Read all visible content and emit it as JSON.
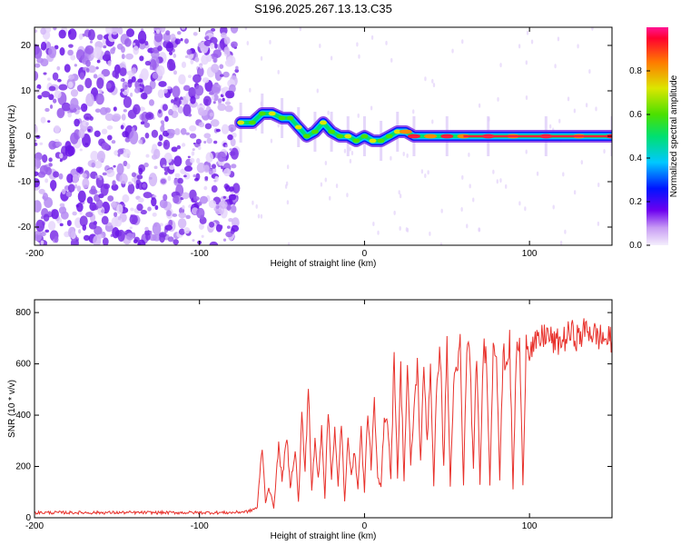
{
  "title": "S196.2025.267.13.13.C35",
  "chart_data": [
    {
      "type": "heatmap",
      "name": "spectrogram",
      "xlabel": "Height of straight line (km)",
      "ylabel": "Frequency (Hz)",
      "xlim": [
        -200,
        150
      ],
      "ylim": [
        -24,
        24
      ],
      "xticks": [
        -200,
        -100,
        0,
        100
      ],
      "yticks": [
        -20,
        -10,
        0,
        10,
        20
      ],
      "noise_region_x": [
        -200,
        -77
      ],
      "ridge": [
        {
          "x": -75,
          "y": 3
        },
        {
          "x": -68,
          "y": 3
        },
        {
          "x": -62,
          "y": 5
        },
        {
          "x": -56,
          "y": 5
        },
        {
          "x": -50,
          "y": 4
        },
        {
          "x": -45,
          "y": 4
        },
        {
          "x": -40,
          "y": 2
        },
        {
          "x": -35,
          "y": 0
        },
        {
          "x": -30,
          "y": 1
        },
        {
          "x": -25,
          "y": 3
        },
        {
          "x": -20,
          "y": 1
        },
        {
          "x": -15,
          "y": 0
        },
        {
          "x": -10,
          "y": 0
        },
        {
          "x": -5,
          "y": -1
        },
        {
          "x": 0,
          "y": 0
        },
        {
          "x": 5,
          "y": -1
        },
        {
          "x": 10,
          "y": -1
        },
        {
          "x": 15,
          "y": 0
        },
        {
          "x": 20,
          "y": 1
        },
        {
          "x": 25,
          "y": 1
        },
        {
          "x": 30,
          "y": 0
        },
        {
          "x": 40,
          "y": 0
        },
        {
          "x": 50,
          "y": 0
        },
        {
          "x": 60,
          "y": 0
        },
        {
          "x": 75,
          "y": 0
        },
        {
          "x": 90,
          "y": 0
        },
        {
          "x": 110,
          "y": 0
        },
        {
          "x": 130,
          "y": 0
        },
        {
          "x": 150,
          "y": 0
        }
      ],
      "colorbar": {
        "label": "Normalized spectral amplitude",
        "ticks": [
          0.0,
          0.2,
          0.4,
          0.6,
          0.8
        ],
        "range": [
          0,
          1
        ]
      }
    },
    {
      "type": "line",
      "name": "snr",
      "xlabel": "Height of straight line (km)",
      "ylabel": "SNR (10 * v/v)",
      "xlim": [
        -200,
        150
      ],
      "ylim": [
        0,
        850
      ],
      "xticks": [
        -200,
        -100,
        0,
        100
      ],
      "yticks": [
        0,
        200,
        400,
        600,
        800
      ],
      "series": [
        {
          "name": "SNR",
          "color": "#e8312b",
          "x": [
            -200,
            -180,
            -160,
            -140,
            -120,
            -100,
            -90,
            -80,
            -70,
            -65,
            -62,
            -60,
            -58,
            -55,
            -52,
            -50,
            -47,
            -45,
            -42,
            -40,
            -38,
            -36,
            -34,
            -32,
            -30,
            -28,
            -26,
            -24,
            -22,
            -20,
            -18,
            -16,
            -14,
            -12,
            -10,
            -8,
            -6,
            -4,
            -2,
            0,
            2,
            4,
            6,
            8,
            10,
            12,
            14,
            16,
            18,
            20,
            22,
            24,
            26,
            28,
            30,
            32,
            34,
            36,
            38,
            40,
            42,
            44,
            46,
            48,
            50,
            52,
            54,
            56,
            58,
            60,
            62,
            64,
            66,
            68,
            70,
            72,
            74,
            76,
            78,
            80,
            82,
            84,
            86,
            88,
            90,
            92,
            94,
            96,
            98,
            100,
            105,
            110,
            115,
            120,
            125,
            130,
            135,
            140,
            145,
            150
          ],
          "values": [
            20,
            20,
            20,
            20,
            20,
            20,
            20,
            20,
            25,
            40,
            280,
            60,
            120,
            40,
            280,
            150,
            310,
            120,
            270,
            60,
            400,
            180,
            520,
            100,
            300,
            150,
            360,
            80,
            420,
            160,
            340,
            120,
            380,
            60,
            300,
            180,
            250,
            120,
            340,
            100,
            420,
            200,
            440,
            150,
            120,
            400,
            380,
            150,
            640,
            160,
            580,
            150,
            600,
            200,
            420,
            600,
            220,
            580,
            300,
            600,
            120,
            580,
            640,
            200,
            680,
            120,
            520,
            560,
            680,
            120,
            680,
            620,
            180,
            660,
            120,
            660,
            640,
            120,
            680,
            660,
            150,
            640,
            600,
            680,
            110,
            640,
            680,
            120,
            700,
            660,
            680,
            720,
            680,
            690,
            720,
            700,
            740,
            710,
            700,
            690
          ]
        }
      ]
    }
  ]
}
